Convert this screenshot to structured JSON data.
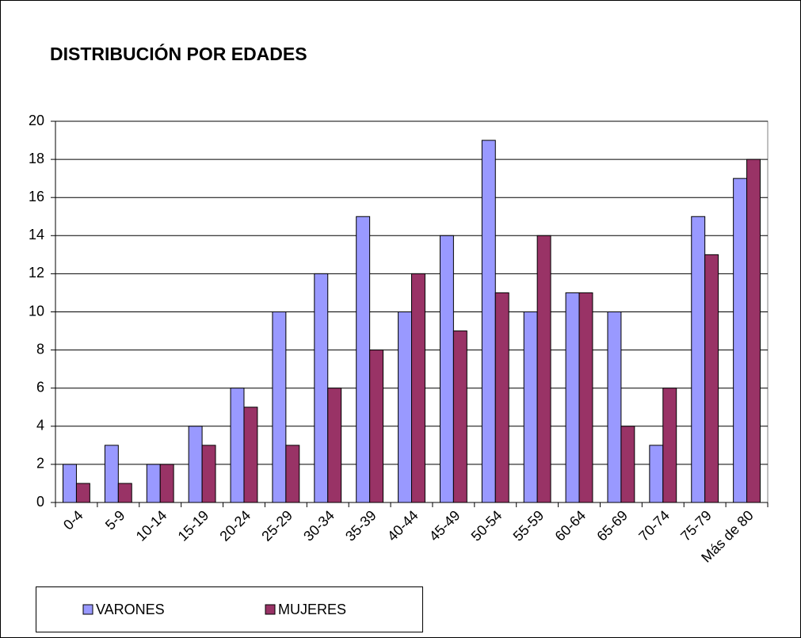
{
  "chart_data": {
    "type": "bar",
    "title": "DISTRIBUCIÓN POR EDADES",
    "categories": [
      "0-4",
      "5-9",
      "10-14",
      "15-19",
      "20-24",
      "25-29",
      "30-34",
      "35-39",
      "40-44",
      "45-49",
      "50-54",
      "55-59",
      "60-64",
      "65-69",
      "70-74",
      "75-79",
      "Más de 80"
    ],
    "series": [
      {
        "name": "VARONES",
        "color": "#9999ff",
        "values": [
          2,
          3,
          2,
          4,
          6,
          10,
          12,
          15,
          10,
          14,
          19,
          10,
          11,
          10,
          3,
          15,
          17
        ]
      },
      {
        "name": "MUJERES",
        "color": "#993366",
        "values": [
          1,
          1,
          2,
          3,
          5,
          3,
          6,
          8,
          12,
          9,
          11,
          14,
          11,
          4,
          6,
          13,
          18
        ]
      }
    ],
    "ylim": [
      0,
      20
    ],
    "yticks": [
      0,
      2,
      4,
      6,
      8,
      10,
      12,
      14,
      16,
      18,
      20
    ],
    "grid": true,
    "legend": "bottom"
  }
}
